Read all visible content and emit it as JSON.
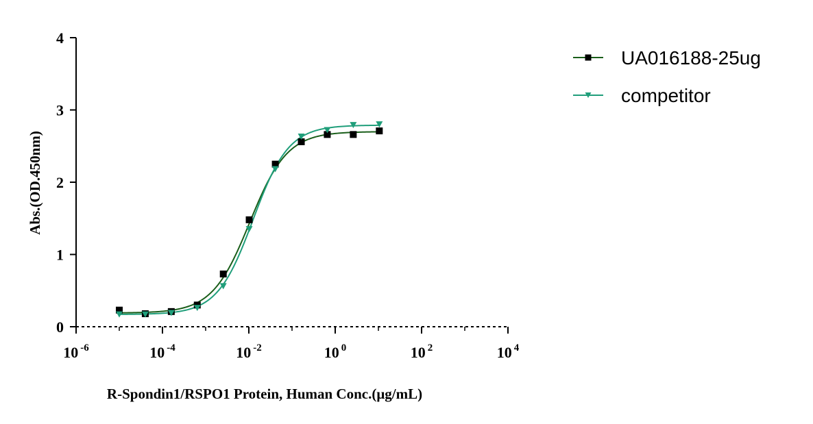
{
  "chart_data": {
    "type": "line",
    "xscale": "log",
    "xlabel": "R-Spondin1/RSPO1 Protein, Human Conc.(μg/mL)",
    "ylabel": "Abs.(OD.450nm)",
    "xlim": [
      1e-06,
      10000
    ],
    "ylim": [
      0,
      4
    ],
    "x_ticks": [
      {
        "value": 1e-06,
        "base": "10",
        "exp": "-6"
      },
      {
        "value": 0.0001,
        "base": "10",
        "exp": "-4"
      },
      {
        "value": 0.01,
        "base": "10",
        "exp": "-2"
      },
      {
        "value": 1,
        "base": "10",
        "exp": "0"
      },
      {
        "value": 100,
        "base": "10",
        "exp": "2"
      },
      {
        "value": 10000,
        "base": "10",
        "exp": "4"
      }
    ],
    "y_ticks": [
      "0",
      "1",
      "2",
      "3",
      "4"
    ],
    "legend_position": "top-right",
    "series": [
      {
        "name": "UA016188-25ug",
        "color": "#1a5e1a",
        "marker": "square",
        "x": [
          1e-05,
          4e-05,
          0.00016,
          0.00064,
          0.00256,
          0.0102,
          0.041,
          0.164,
          0.655,
          2.62,
          10.5
        ],
        "y": [
          0.23,
          0.18,
          0.21,
          0.3,
          0.73,
          1.48,
          2.25,
          2.56,
          2.66,
          2.66,
          2.71
        ],
        "fit": {
          "bottom": 0.19,
          "top": 2.7,
          "ec50": 0.0105,
          "hill": 1.0
        }
      },
      {
        "name": "competitor",
        "color": "#1f9e7a",
        "marker": "triangle-down",
        "x": [
          1e-05,
          4e-05,
          0.00016,
          0.00064,
          0.00256,
          0.0102,
          0.041,
          0.164,
          0.655,
          2.62,
          10.5
        ],
        "y": [
          0.17,
          0.17,
          0.19,
          0.26,
          0.56,
          1.35,
          2.18,
          2.63,
          2.72,
          2.79,
          2.8
        ],
        "fit": {
          "bottom": 0.17,
          "top": 2.79,
          "ec50": 0.0125,
          "hill": 1.05
        }
      }
    ]
  }
}
